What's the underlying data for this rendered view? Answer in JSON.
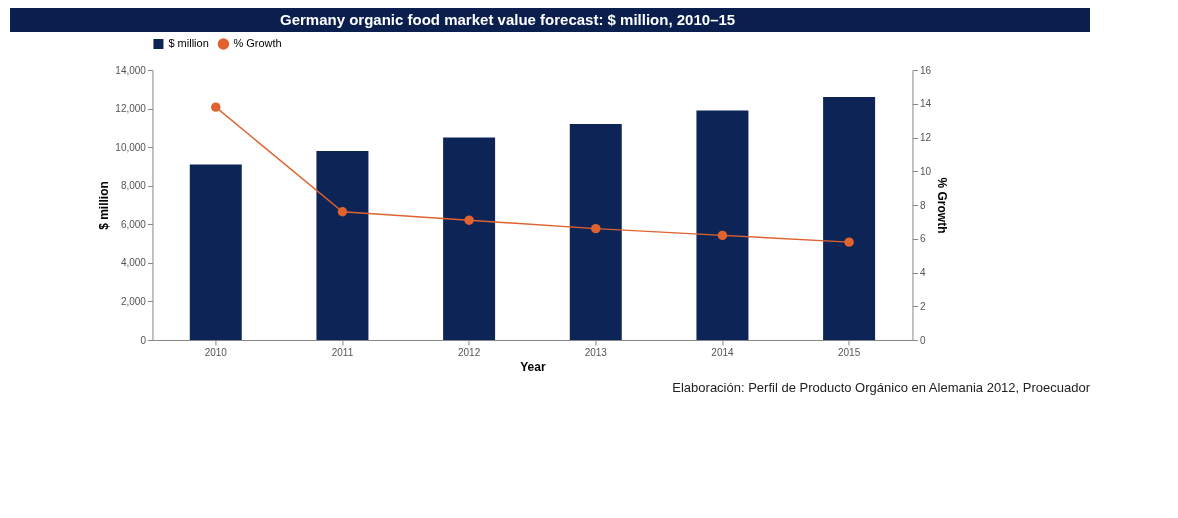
{
  "chart_data": {
    "type": "bar",
    "title": "Germany organic food market value forecast: $ million, 2010–15",
    "xlabel": "Year",
    "ylabel": "$ million",
    "y2label": "% Growth",
    "categories": [
      "2010",
      "2011",
      "2012",
      "2013",
      "2014",
      "2015"
    ],
    "series": [
      {
        "name": "$ million",
        "color": "#0d2456",
        "values": [
          9100,
          9800,
          10500,
          11200,
          11900,
          12600
        ]
      },
      {
        "name": "% Growth",
        "type": "line",
        "axis": "y2",
        "color": "#e0622e",
        "marker": "circle",
        "values": [
          13.8,
          7.6,
          7.1,
          6.6,
          6.2,
          5.8
        ]
      }
    ],
    "ylim": [
      0,
      14000
    ],
    "yticks": [
      {
        "value": 0,
        "label": "0"
      },
      {
        "value": 2000,
        "label": "2,000"
      },
      {
        "value": 4000,
        "label": "4,000"
      },
      {
        "value": 6000,
        "label": "6,000"
      },
      {
        "value": 8000,
        "label": "8,000"
      },
      {
        "value": 10000,
        "label": "10,000"
      },
      {
        "value": 12000,
        "label": "12,000"
      },
      {
        "value": 14000,
        "label": "14,000"
      }
    ],
    "y2lim": [
      0,
      16
    ],
    "y2ticks": [
      0,
      2,
      4,
      6,
      8,
      10,
      12,
      14,
      16
    ],
    "grid": false,
    "legend": "top",
    "annotations": [
      "Elaboración: Perfil de Producto Orgánico en Alemania 2012, Proecuador"
    ]
  }
}
